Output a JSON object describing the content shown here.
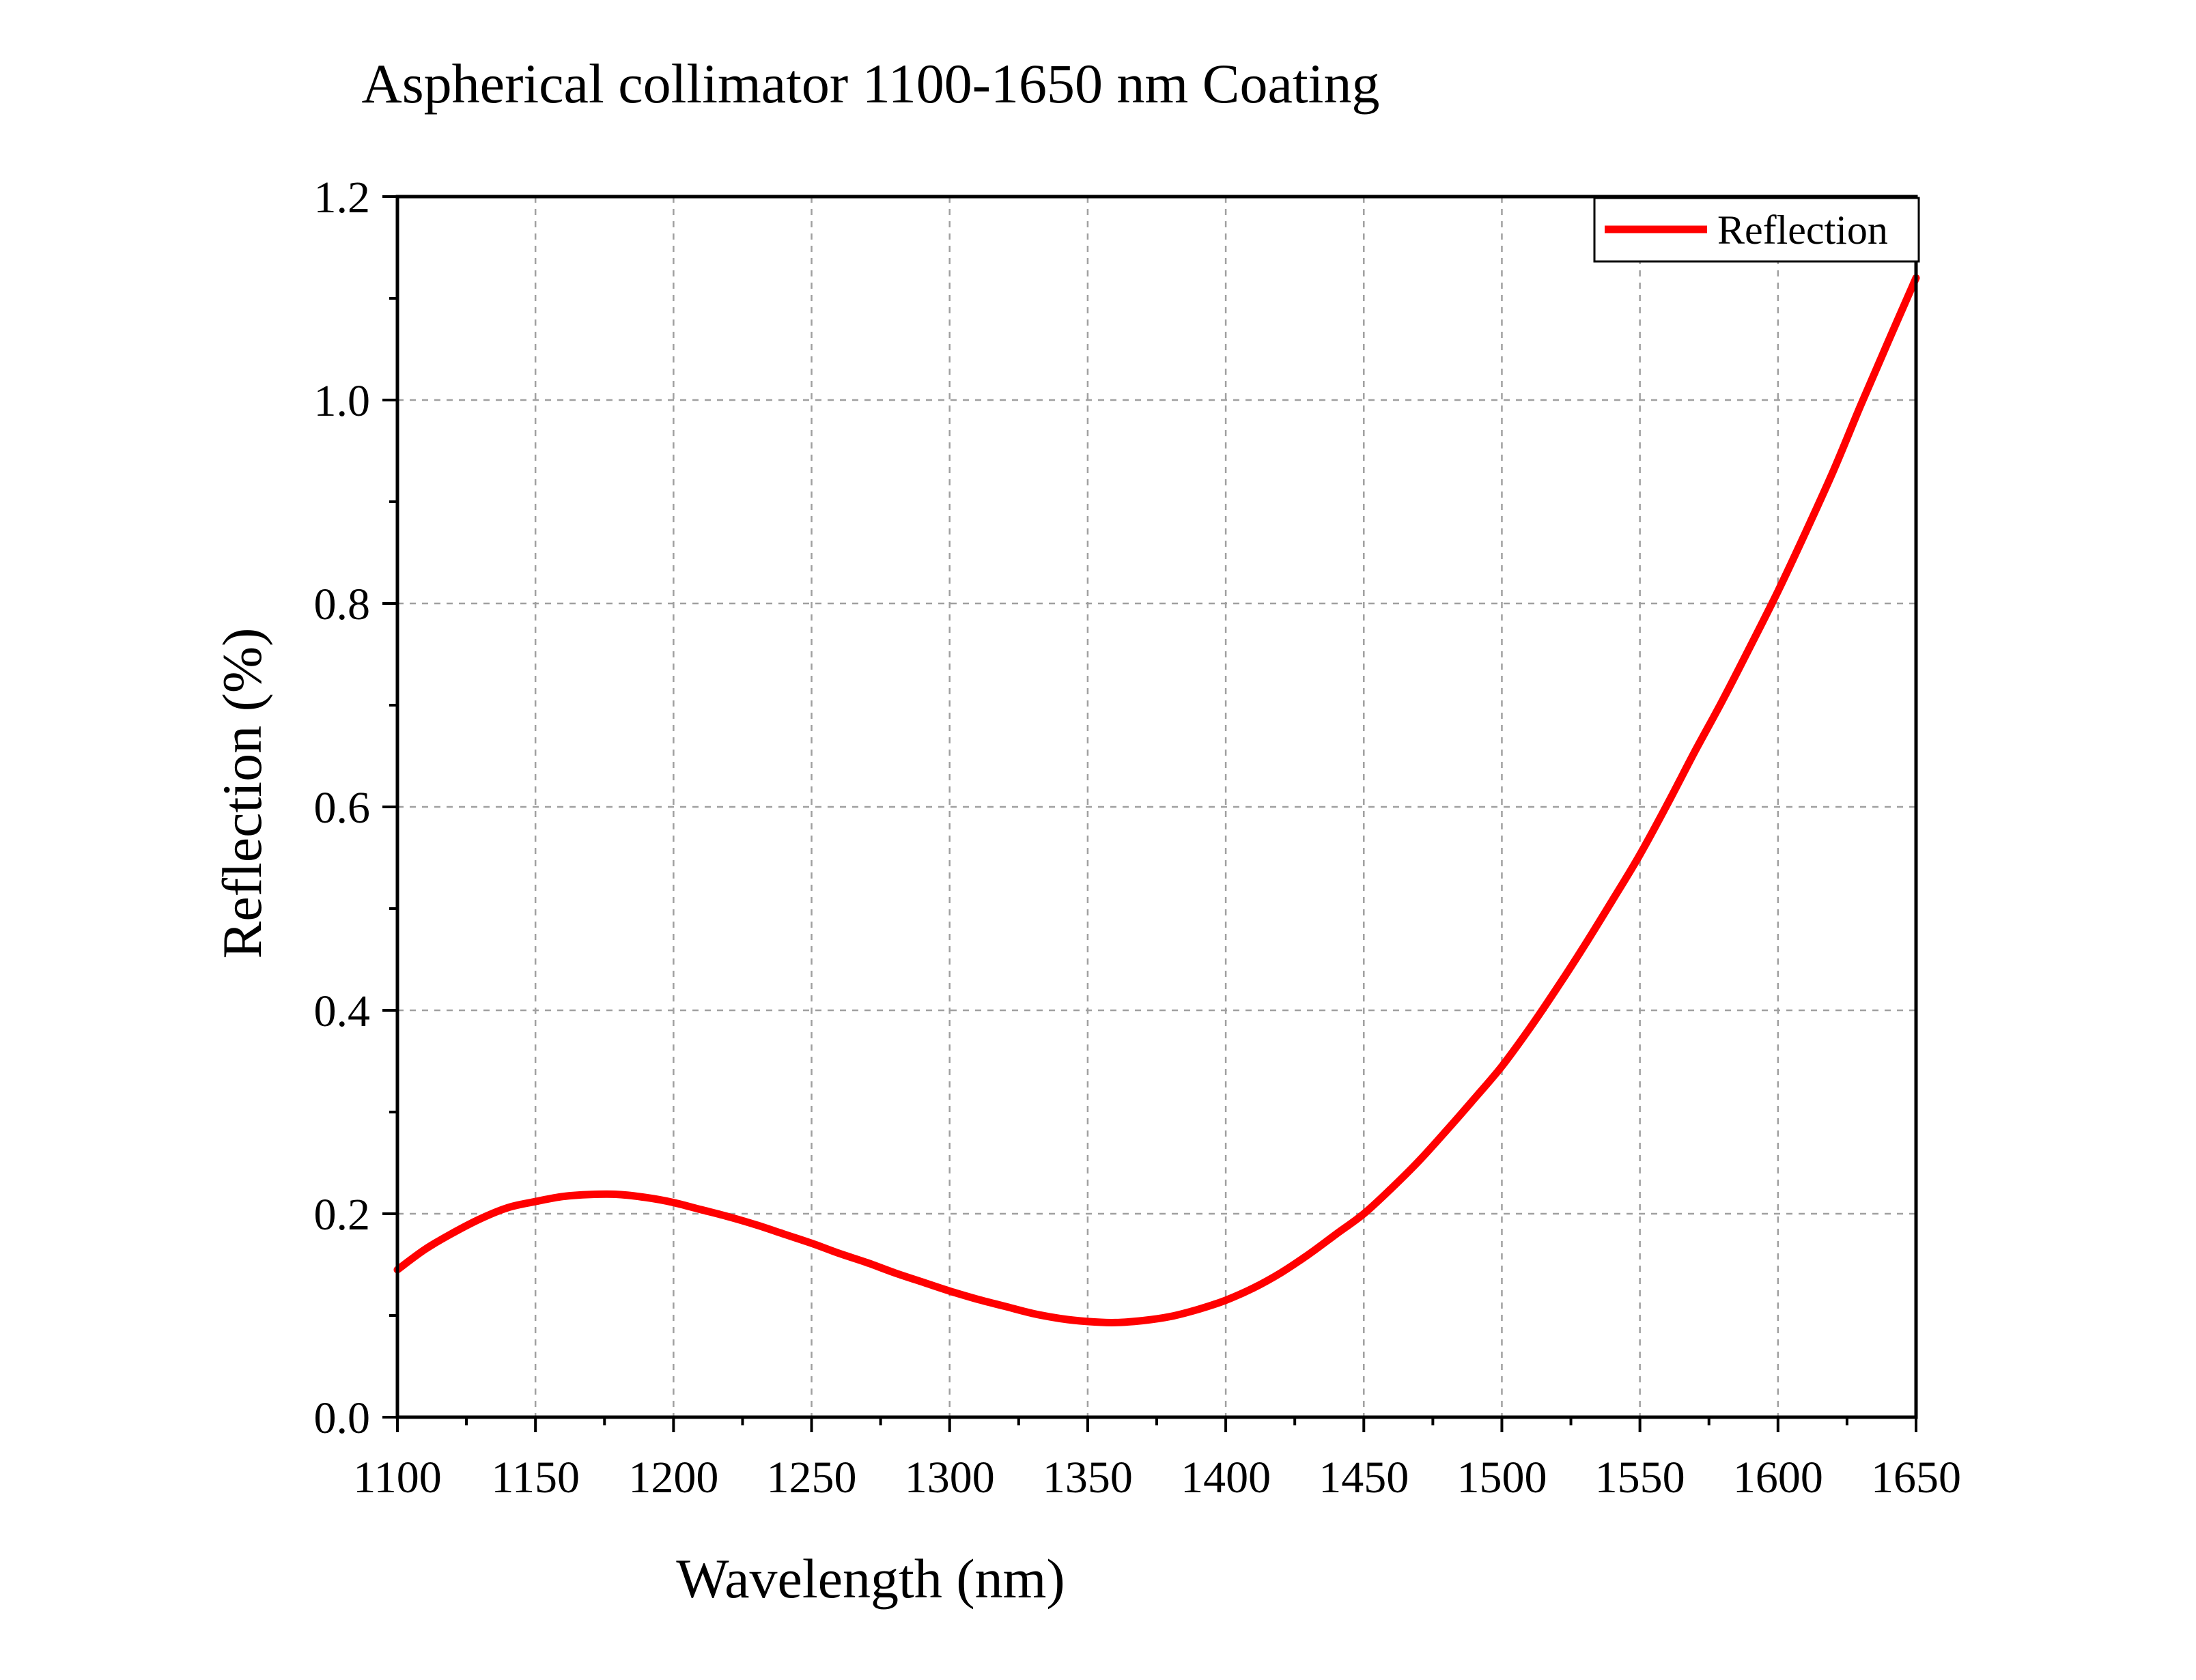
{
  "chart_data": {
    "type": "line",
    "title": "Aspherical collimator 1100-1650 nm Coating",
    "xlabel": "Wavelength (nm)",
    "ylabel": "Reflection (%)",
    "xlim": [
      1100,
      1650
    ],
    "ylim": [
      0,
      1.2
    ],
    "x_ticks": [
      "1100",
      "1150",
      "1200",
      "1250",
      "1300",
      "1350",
      "1400",
      "1450",
      "1500",
      "1550",
      "1600",
      "1650"
    ],
    "y_ticks": [
      "0.0",
      "0.2",
      "0.4",
      "0.6",
      "0.8",
      "1.0",
      "1.2"
    ],
    "grid": true,
    "legend_position": "top-right",
    "series": [
      {
        "name": "Reflection",
        "color": "#ff0000",
        "x": [
          1100,
          1110,
          1120,
          1130,
          1140,
          1150,
          1160,
          1170,
          1180,
          1190,
          1200,
          1210,
          1220,
          1230,
          1240,
          1250,
          1260,
          1270,
          1280,
          1290,
          1300,
          1310,
          1320,
          1330,
          1340,
          1350,
          1360,
          1370,
          1380,
          1390,
          1400,
          1410,
          1420,
          1430,
          1440,
          1450,
          1460,
          1470,
          1480,
          1490,
          1500,
          1510,
          1520,
          1530,
          1540,
          1550,
          1560,
          1570,
          1580,
          1590,
          1600,
          1610,
          1620,
          1630,
          1640,
          1650
        ],
        "y": [
          0.145,
          0.165,
          0.181,
          0.195,
          0.206,
          0.212,
          0.217,
          0.219,
          0.219,
          0.216,
          0.211,
          0.204,
          0.197,
          0.189,
          0.18,
          0.171,
          0.161,
          0.152,
          0.142,
          0.133,
          0.124,
          0.116,
          0.109,
          0.102,
          0.097,
          0.094,
          0.093,
          0.095,
          0.099,
          0.106,
          0.115,
          0.127,
          0.142,
          0.16,
          0.18,
          0.2,
          0.225,
          0.252,
          0.282,
          0.313,
          0.345,
          0.382,
          0.422,
          0.464,
          0.508,
          0.553,
          0.603,
          0.655,
          0.705,
          0.758,
          0.812,
          0.87,
          0.93,
          0.995,
          1.058,
          1.12
        ]
      }
    ]
  }
}
